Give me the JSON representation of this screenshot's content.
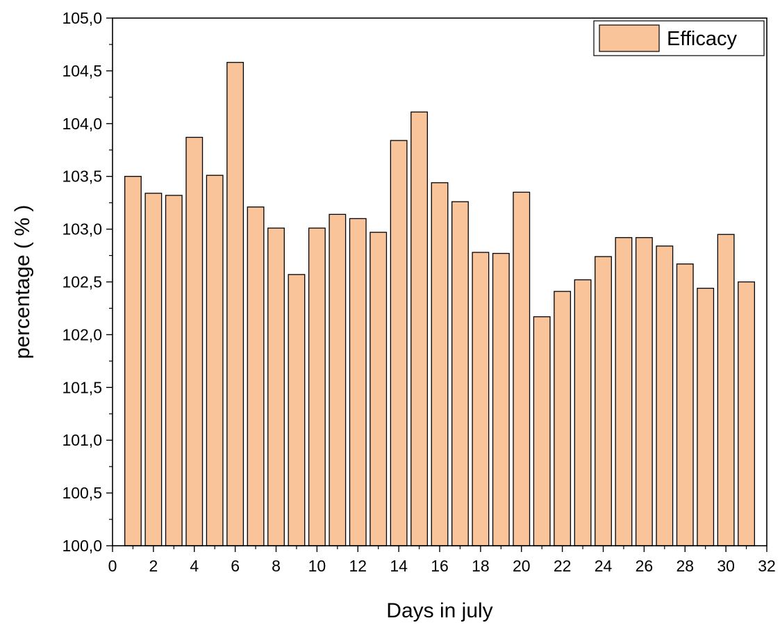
{
  "chart_data": {
    "type": "bar",
    "title": "",
    "xlabel": "Days in july",
    "ylabel": "percentage ( % )",
    "xlim": [
      0,
      32
    ],
    "ylim": [
      100.0,
      105.0
    ],
    "x_ticks": [
      "0",
      "2",
      "4",
      "6",
      "8",
      "10",
      "12",
      "14",
      "16",
      "18",
      "20",
      "22",
      "24",
      "26",
      "28",
      "30",
      "32"
    ],
    "y_ticks": [
      "100,0",
      "100,5",
      "101,0",
      "101,5",
      "102,0",
      "102,5",
      "103,0",
      "103,5",
      "104,0",
      "104,5",
      "105,0"
    ],
    "grid": false,
    "legend_position": "top-right",
    "series": [
      {
        "name": "Efficacy",
        "color": "#FAC49B",
        "x": [
          1,
          2,
          3,
          4,
          5,
          6,
          7,
          8,
          9,
          10,
          11,
          12,
          13,
          14,
          15,
          16,
          17,
          18,
          19,
          20,
          21,
          22,
          23,
          24,
          25,
          26,
          27,
          28,
          29,
          30,
          31
        ],
        "values": [
          103.5,
          103.34,
          103.32,
          103.87,
          103.51,
          104.58,
          103.21,
          103.01,
          102.57,
          103.01,
          103.14,
          103.1,
          102.97,
          103.84,
          104.11,
          103.44,
          103.26,
          102.78,
          102.77,
          103.35,
          102.17,
          102.41,
          102.52,
          102.74,
          102.92,
          102.92,
          102.84,
          102.67,
          102.44,
          102.95,
          102.5
        ]
      }
    ]
  }
}
